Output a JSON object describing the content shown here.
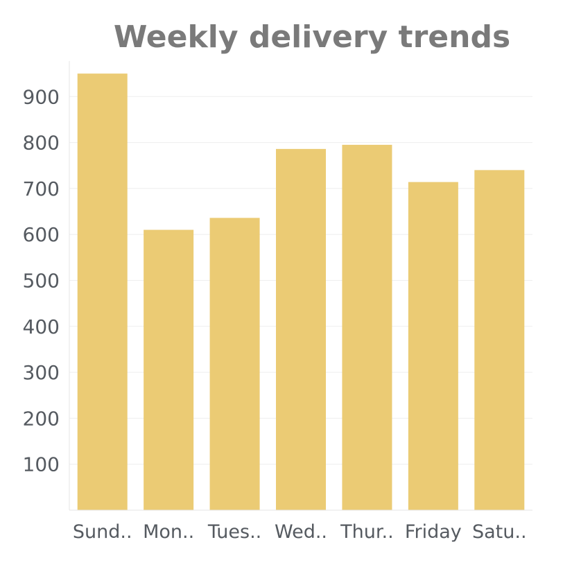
{
  "chart_data": {
    "type": "bar",
    "title": "Weekly delivery trends",
    "xlabel": "",
    "ylabel": "",
    "categories": [
      "Sund..",
      "Mon..",
      "Tues..",
      "Wed..",
      "Thur..",
      "Friday",
      "Satu.."
    ],
    "values": [
      950,
      610,
      636,
      786,
      795,
      714,
      740
    ],
    "yticks": [
      100,
      200,
      300,
      400,
      500,
      600,
      700,
      800,
      900
    ],
    "ylim": [
      0,
      980
    ],
    "grid": true,
    "legend": "none",
    "bar_color": "#ebcb74",
    "grid_color": "#eeeeee",
    "text_color": "#555a60",
    "title_color": "#7a7a7a"
  }
}
